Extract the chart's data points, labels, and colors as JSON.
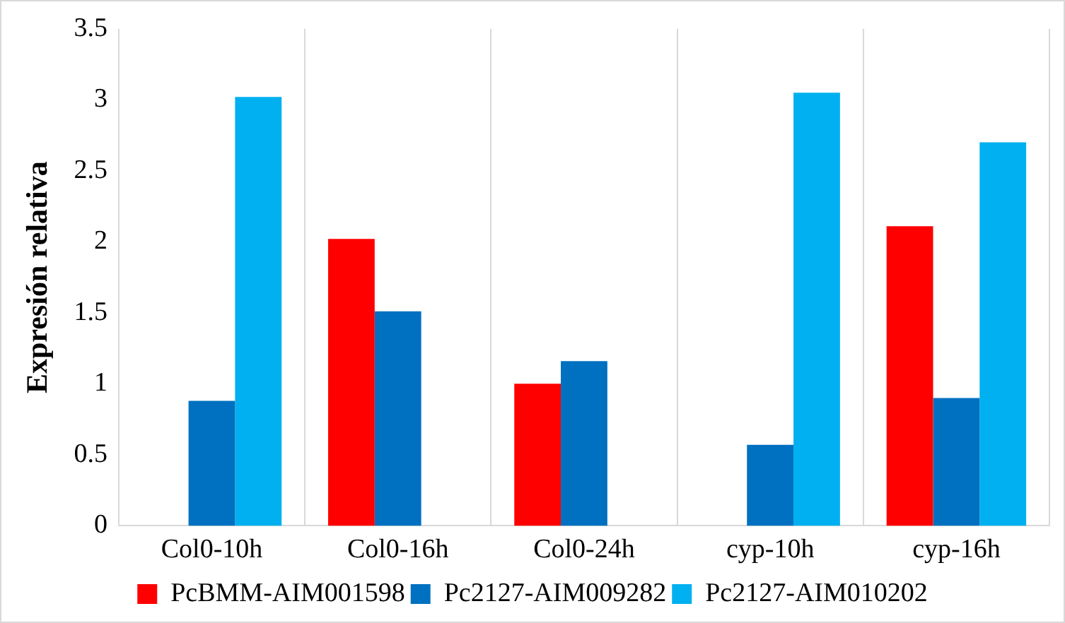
{
  "chart_data": {
    "type": "bar",
    "ylabel": "Expresión relativa",
    "categories": [
      "Col0-10h",
      "Col0-16h",
      "Col0-24h",
      "cyp-10h",
      "cyp-16h"
    ],
    "series": [
      {
        "name": "PcBMM-AIM001598",
        "color": "#ff0000",
        "values": [
          null,
          2.02,
          1.0,
          null,
          2.11
        ]
      },
      {
        "name": "Pc2127-AIM009282",
        "color": "#0070c0",
        "values": [
          0.88,
          1.51,
          1.16,
          0.57,
          0.9
        ]
      },
      {
        "name": "Pc2127-AIM010202",
        "color": "#00b0f0",
        "values": [
          3.02,
          null,
          null,
          3.05,
          2.7
        ]
      }
    ],
    "ylim": [
      0,
      3.5
    ],
    "yticks": [
      0,
      0.5,
      1,
      1.5,
      2,
      2.5,
      3,
      3.5
    ],
    "grid": "x",
    "legend": "bottom"
  }
}
